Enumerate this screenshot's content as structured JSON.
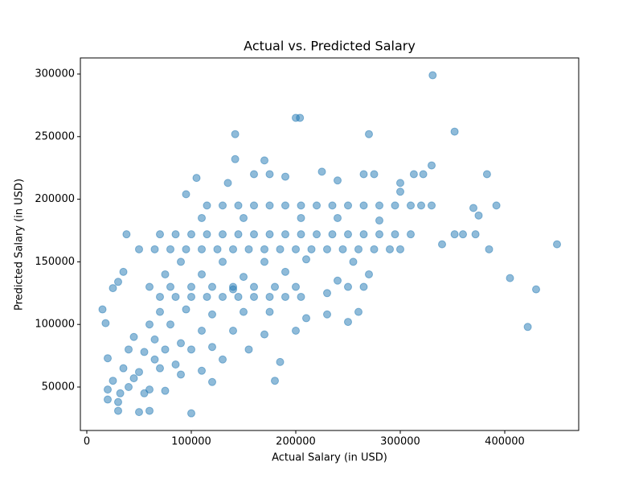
{
  "chart_data": {
    "type": "scatter",
    "title": "Actual vs. Predicted Salary",
    "x_label": "Actual Salary (in USD)",
    "y_label": "Predicted Salary (in USD)",
    "color": "#1f77b4",
    "alpha": 0.5,
    "xlim": [
      -6154,
      470769
    ],
    "ylim": [
      15296,
      312853
    ],
    "xticks": [
      0,
      100000,
      200000,
      300000,
      400000
    ],
    "yticks": [
      50000,
      100000,
      150000,
      200000,
      250000,
      300000
    ],
    "x": [
      331000,
      200000,
      204000,
      142000,
      270000,
      352000,
      142000,
      170000,
      330000,
      450000,
      430000,
      422000,
      405000,
      385000,
      383000,
      392000,
      375000,
      370000,
      340000,
      352000,
      360000,
      372000,
      100000,
      50000,
      60000,
      30000,
      15000,
      18000,
      20000,
      25000,
      30000,
      35000,
      38000,
      180000,
      185000,
      120000,
      250000,
      260000,
      270000,
      115000,
      130000,
      145000,
      160000,
      175000,
      190000,
      205000,
      220000,
      235000,
      250000,
      265000,
      280000,
      295000,
      310000,
      320000,
      330000,
      70000,
      85000,
      100000,
      115000,
      130000,
      145000,
      160000,
      175000,
      190000,
      205000,
      220000,
      235000,
      250000,
      265000,
      280000,
      295000,
      310000,
      50000,
      65000,
      80000,
      95000,
      110000,
      125000,
      140000,
      155000,
      170000,
      185000,
      200000,
      215000,
      230000,
      245000,
      260000,
      275000,
      290000,
      300000,
      70000,
      85000,
      100000,
      115000,
      130000,
      145000,
      160000,
      175000,
      190000,
      205000,
      60000,
      80000,
      100000,
      120000,
      140000,
      160000,
      180000,
      200000,
      105000,
      95000,
      160000,
      175000,
      190000,
      225000,
      240000,
      265000,
      275000,
      300000,
      300000,
      313000,
      322000,
      135000,
      110000,
      150000,
      205000,
      240000,
      280000,
      90000,
      130000,
      170000,
      210000,
      255000,
      75000,
      110000,
      150000,
      190000,
      240000,
      265000,
      70000,
      95000,
      120000,
      150000,
      175000,
      210000,
      230000,
      60000,
      80000,
      110000,
      140000,
      170000,
      200000,
      45000,
      65000,
      90000,
      120000,
      155000,
      40000,
      55000,
      75000,
      100000,
      130000,
      35000,
      50000,
      70000,
      90000,
      110000,
      20000,
      25000,
      32000,
      40000,
      45000,
      55000,
      60000,
      75000,
      30000,
      20000,
      85000,
      65000,
      140000,
      230000,
      250000
    ],
    "values": [
      299000,
      265000,
      265000,
      252000,
      252000,
      254000,
      232000,
      231000,
      227000,
      164000,
      128000,
      98000,
      137000,
      160000,
      220000,
      195000,
      187000,
      193000,
      164000,
      172000,
      172000,
      172000,
      29000,
      30000,
      31000,
      31000,
      112000,
      101000,
      73000,
      129000,
      134000,
      142000,
      172000,
      55000,
      70000,
      54000,
      102000,
      110000,
      140000,
      195000,
      195000,
      195000,
      195000,
      195000,
      195000,
      195000,
      195000,
      195000,
      195000,
      195000,
      195000,
      195000,
      195000,
      195000,
      195000,
      172000,
      172000,
      172000,
      172000,
      172000,
      172000,
      172000,
      172000,
      172000,
      172000,
      172000,
      172000,
      172000,
      172000,
      172000,
      172000,
      172000,
      160000,
      160000,
      160000,
      160000,
      160000,
      160000,
      160000,
      160000,
      160000,
      160000,
      160000,
      160000,
      160000,
      160000,
      160000,
      160000,
      160000,
      160000,
      122000,
      122000,
      122000,
      122000,
      122000,
      122000,
      122000,
      122000,
      122000,
      122000,
      130000,
      130000,
      130000,
      130000,
      130000,
      130000,
      130000,
      130000,
      217000,
      204000,
      220000,
      220000,
      218000,
      222000,
      215000,
      220000,
      220000,
      213000,
      206000,
      220000,
      220000,
      213000,
      185000,
      185000,
      185000,
      185000,
      183000,
      150000,
      150000,
      150000,
      152000,
      150000,
      140000,
      140000,
      138000,
      142000,
      135000,
      130000,
      110000,
      112000,
      108000,
      110000,
      110000,
      105000,
      108000,
      100000,
      100000,
      95000,
      95000,
      92000,
      95000,
      90000,
      88000,
      85000,
      82000,
      80000,
      80000,
      78000,
      80000,
      80000,
      72000,
      65000,
      62000,
      65000,
      60000,
      63000,
      48000,
      55000,
      45000,
      50000,
      57000,
      45000,
      48000,
      47000,
      38000,
      40000,
      68000,
      72000,
      128000,
      125000,
      130000
    ]
  }
}
